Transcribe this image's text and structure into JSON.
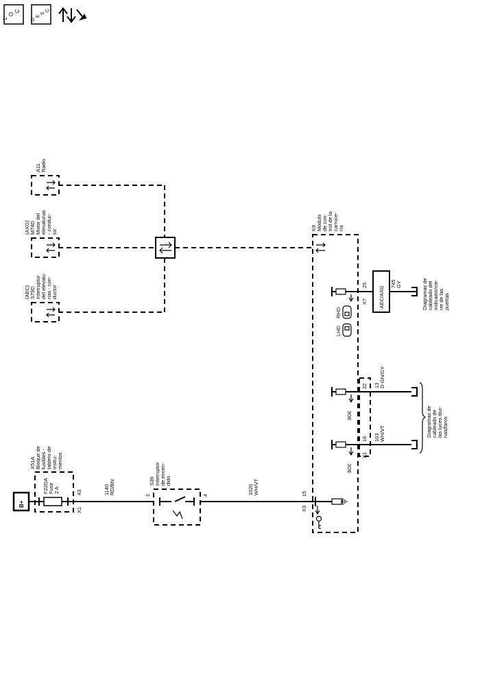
{
  "header": {
    "loc_icon": "location-view-icon",
    "desc_icon": "description-view-icon",
    "tools_icon": "diagnostic-arrows-wrench-icon",
    "loc_letters": [
      "L",
      "O",
      "C"
    ],
    "desc_letters": [
      "D",
      "E",
      "S",
      "C"
    ]
  },
  "battery": {
    "label": "B+"
  },
  "x51a": {
    "id": "X51A",
    "lines": [
      "Bloque de",
      "fusibles -",
      "tablero de",
      "instru-",
      "mentos"
    ],
    "fuse_id": "F22DA",
    "fuse_word": "Fuse",
    "fuse_rating": "2 A",
    "conn": "X1",
    "pin": "43"
  },
  "wire_1140": {
    "circuit": "1140",
    "color": "RD/BN"
  },
  "s39": {
    "id": "S39",
    "lines": [
      "Interruptor",
      "de encen-",
      "dido"
    ],
    "pin_in": "2",
    "pin_out": "4"
  },
  "wire_1020": {
    "circuit": "1020",
    "color": "WH/VT"
  },
  "a11": {
    "id": "A11",
    "name": "Radio"
  },
  "m74d": {
    "option": "(AXG)",
    "id": "M74D",
    "lines": [
      "Motor del",
      "elevalunas",
      "- conduc-",
      "tor"
    ]
  },
  "s79d": {
    "option": "(AEC)",
    "id": "S79D",
    "lines": [
      "Interruptor",
      "del elevalu-",
      "nas - con-",
      "ductor"
    ]
  },
  "k9": {
    "id": "K9",
    "lines": [
      "Módulo",
      "de con-",
      "trol de la",
      "carroce-",
      "ría"
    ],
    "x3": "X3",
    "x3_pin": "15",
    "x1": "X1",
    "x1_pin_a": "16",
    "x1_pin_b": "22",
    "x7": "X7",
    "x7_pin": "25"
  },
  "wire_103": {
    "circuit": "103",
    "color": "WH/VT"
  },
  "wire_13": {
    "circuit": "13",
    "color": "D-GN/GY"
  },
  "wire_745": {
    "circuit": "745",
    "color": "GY"
  },
  "option_box": {
    "label": "-AEC/AXG"
  },
  "lhd": "LHD",
  "rhd": "RHD",
  "ref_drl": {
    "lines": [
      "Diagramas de",
      "cableado de",
      "las luces diur-",
      "nas/faros"
    ]
  },
  "ref_door": {
    "lines": [
      "Diagramas de",
      "cableado del",
      "indicador/cie-",
      "rre de las",
      "puertas"
    ]
  }
}
